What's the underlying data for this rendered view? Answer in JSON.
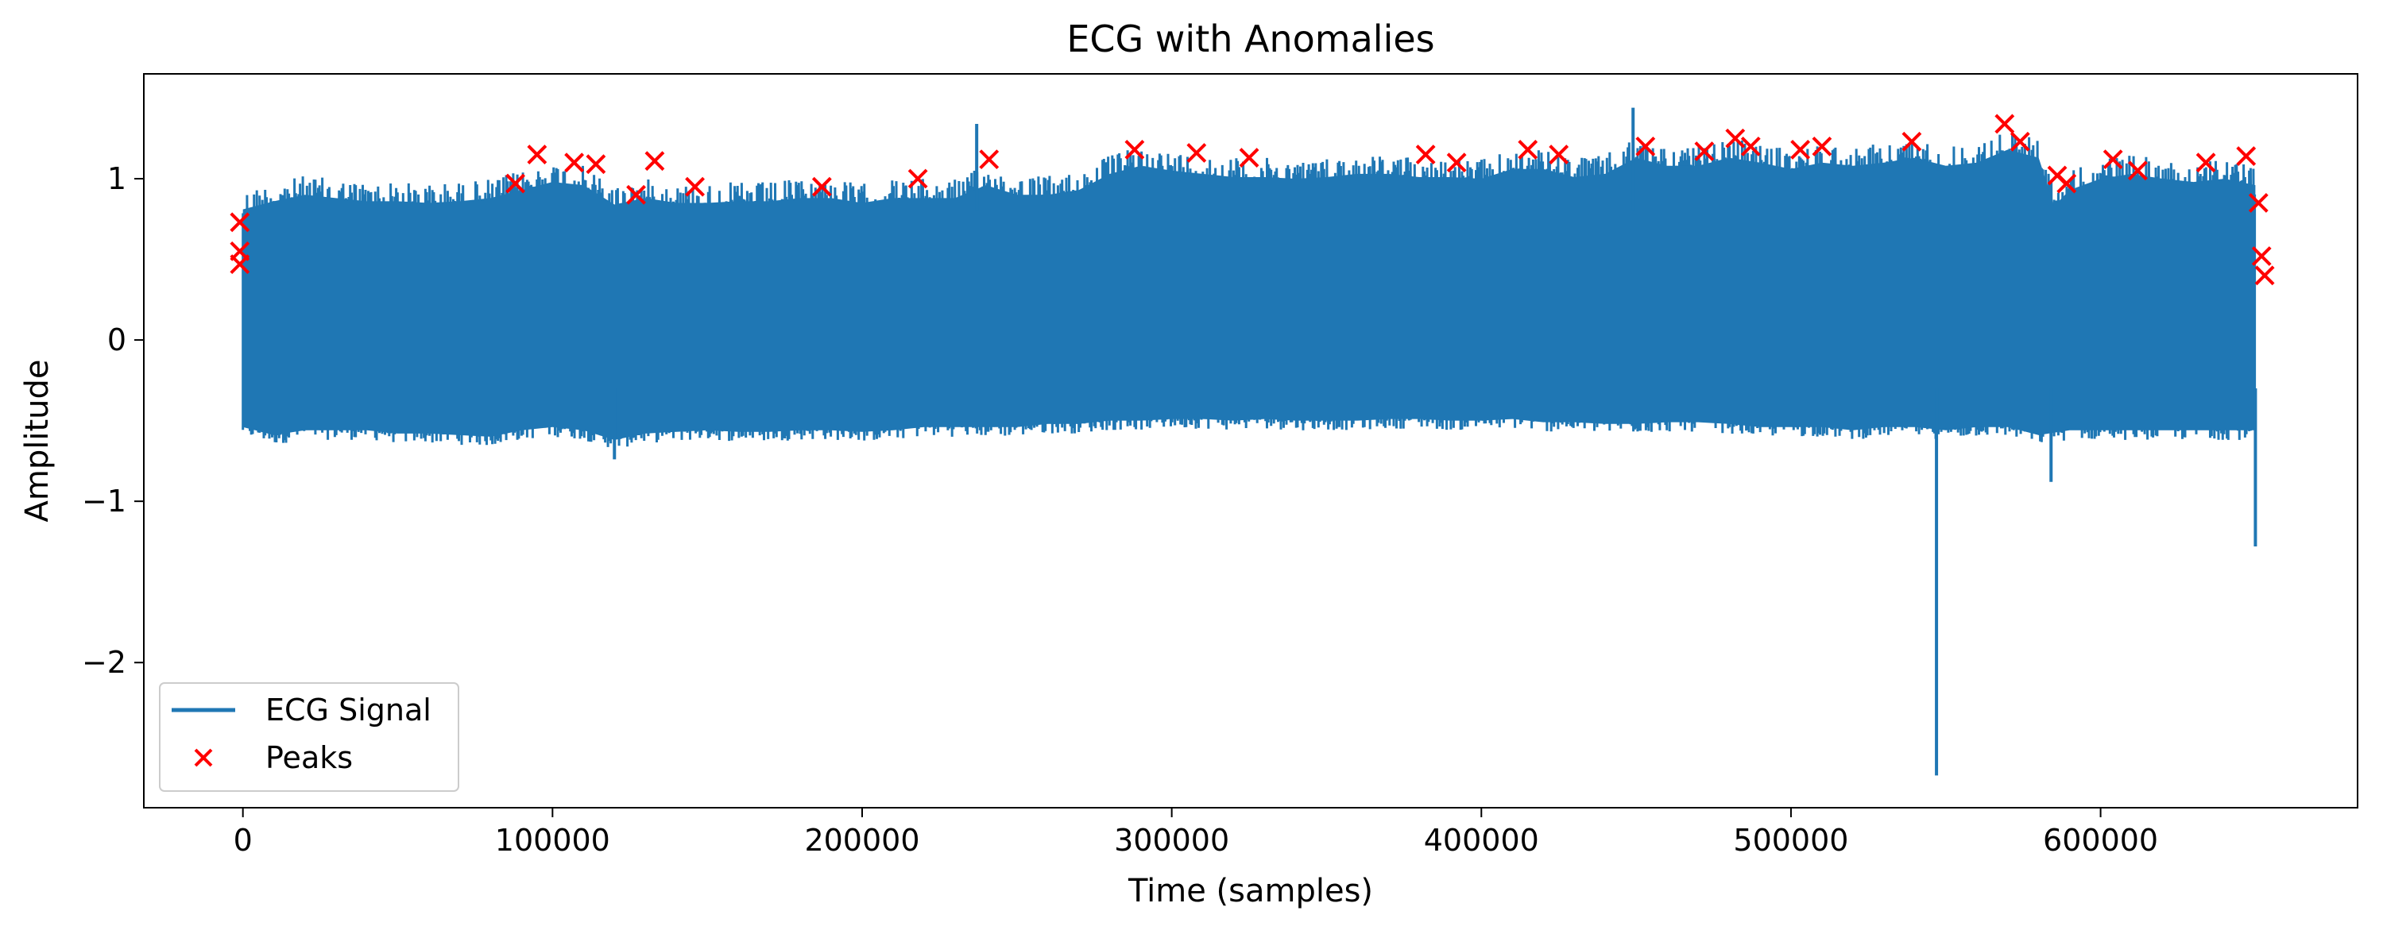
{
  "chart_data": {
    "type": "line",
    "title": "ECG with Anomalies",
    "xlabel": "Time (samples)",
    "ylabel": "Amplitude",
    "xlim": [
      -32000,
      683000
    ],
    "ylim": [
      -2.9,
      1.65
    ],
    "xticks": [
      0,
      100000,
      200000,
      300000,
      400000,
      500000,
      600000
    ],
    "xtick_labels": [
      "0",
      "100000",
      "200000",
      "300000",
      "400000",
      "500000",
      "600000"
    ],
    "yticks": [
      1,
      0,
      -1,
      -2
    ],
    "ytick_labels": [
      "1",
      "0",
      "−1",
      "−2"
    ],
    "grid": false,
    "legend": {
      "placement": "lower-left",
      "entries": [
        "ECG Signal",
        "Peaks"
      ]
    },
    "colors": {
      "signal": "#1f77b4",
      "peaks": "#ff0000"
    },
    "series": [
      {
        "name": "ECG Signal",
        "kind": "line",
        "x_range": [
          0,
          650000
        ],
        "upper_envelope": [
          [
            0,
            0.93
          ],
          [
            10000,
            0.98
          ],
          [
            20000,
            1.02
          ],
          [
            30000,
            1.0
          ],
          [
            40000,
            0.98
          ],
          [
            50000,
            0.98
          ],
          [
            60000,
            0.97
          ],
          [
            70000,
            0.98
          ],
          [
            80000,
            1.0
          ],
          [
            90000,
            1.05
          ],
          [
            100000,
            1.1
          ],
          [
            110000,
            1.08
          ],
          [
            120000,
            0.96
          ],
          [
            130000,
            1.0
          ],
          [
            140000,
            0.97
          ],
          [
            150000,
            0.97
          ],
          [
            160000,
            0.98
          ],
          [
            170000,
            0.98
          ],
          [
            180000,
            1.0
          ],
          [
            190000,
            1.0
          ],
          [
            200000,
            0.97
          ],
          [
            210000,
            1.0
          ],
          [
            220000,
            1.0
          ],
          [
            230000,
            1.0
          ],
          [
            240000,
            1.08
          ],
          [
            250000,
            1.02
          ],
          [
            260000,
            1.02
          ],
          [
            270000,
            1.05
          ],
          [
            280000,
            1.15
          ],
          [
            290000,
            1.2
          ],
          [
            300000,
            1.17
          ],
          [
            310000,
            1.15
          ],
          [
            320000,
            1.13
          ],
          [
            330000,
            1.13
          ],
          [
            340000,
            1.12
          ],
          [
            350000,
            1.13
          ],
          [
            360000,
            1.15
          ],
          [
            370000,
            1.15
          ],
          [
            380000,
            1.13
          ],
          [
            390000,
            1.13
          ],
          [
            400000,
            1.12
          ],
          [
            410000,
            1.18
          ],
          [
            420000,
            1.18
          ],
          [
            430000,
            1.13
          ],
          [
            440000,
            1.15
          ],
          [
            450000,
            1.25
          ],
          [
            460000,
            1.2
          ],
          [
            470000,
            1.2
          ],
          [
            480000,
            1.25
          ],
          [
            490000,
            1.22
          ],
          [
            500000,
            1.18
          ],
          [
            510000,
            1.22
          ],
          [
            520000,
            1.2
          ],
          [
            530000,
            1.22
          ],
          [
            540000,
            1.25
          ],
          [
            550000,
            1.2
          ],
          [
            560000,
            1.22
          ],
          [
            570000,
            1.3
          ],
          [
            580000,
            1.25
          ],
          [
            585000,
            0.95
          ],
          [
            590000,
            1.05
          ],
          [
            600000,
            1.12
          ],
          [
            610000,
            1.15
          ],
          [
            620000,
            1.12
          ],
          [
            630000,
            1.1
          ],
          [
            640000,
            1.12
          ],
          [
            650000,
            1.08
          ]
        ],
        "lower_envelope": [
          [
            0,
            -0.6
          ],
          [
            10000,
            -0.65
          ],
          [
            20000,
            -0.62
          ],
          [
            30000,
            -0.62
          ],
          [
            40000,
            -0.62
          ],
          [
            50000,
            -0.64
          ],
          [
            60000,
            -0.64
          ],
          [
            70000,
            -0.65
          ],
          [
            80000,
            -0.66
          ],
          [
            90000,
            -0.62
          ],
          [
            100000,
            -0.6
          ],
          [
            110000,
            -0.62
          ],
          [
            120000,
            -0.68
          ],
          [
            130000,
            -0.64
          ],
          [
            140000,
            -0.63
          ],
          [
            150000,
            -0.62
          ],
          [
            160000,
            -0.63
          ],
          [
            170000,
            -0.63
          ],
          [
            180000,
            -0.62
          ],
          [
            190000,
            -0.62
          ],
          [
            200000,
            -0.63
          ],
          [
            210000,
            -0.62
          ],
          [
            220000,
            -0.6
          ],
          [
            230000,
            -0.6
          ],
          [
            240000,
            -0.6
          ],
          [
            250000,
            -0.6
          ],
          [
            260000,
            -0.58
          ],
          [
            270000,
            -0.58
          ],
          [
            280000,
            -0.56
          ],
          [
            290000,
            -0.56
          ],
          [
            300000,
            -0.55
          ],
          [
            310000,
            -0.55
          ],
          [
            320000,
            -0.56
          ],
          [
            330000,
            -0.55
          ],
          [
            340000,
            -0.56
          ],
          [
            350000,
            -0.56
          ],
          [
            360000,
            -0.56
          ],
          [
            370000,
            -0.55
          ],
          [
            380000,
            -0.55
          ],
          [
            390000,
            -0.56
          ],
          [
            400000,
            -0.56
          ],
          [
            410000,
            -0.55
          ],
          [
            420000,
            -0.57
          ],
          [
            430000,
            -0.57
          ],
          [
            440000,
            -0.58
          ],
          [
            450000,
            -0.58
          ],
          [
            460000,
            -0.57
          ],
          [
            470000,
            -0.57
          ],
          [
            480000,
            -0.58
          ],
          [
            490000,
            -0.6
          ],
          [
            500000,
            -0.6
          ],
          [
            510000,
            -0.6
          ],
          [
            520000,
            -0.62
          ],
          [
            530000,
            -0.6
          ],
          [
            540000,
            -0.6
          ],
          [
            550000,
            -0.62
          ],
          [
            560000,
            -0.6
          ],
          [
            570000,
            -0.6
          ],
          [
            580000,
            -0.65
          ],
          [
            590000,
            -0.62
          ],
          [
            600000,
            -0.62
          ],
          [
            610000,
            -0.62
          ],
          [
            620000,
            -0.62
          ],
          [
            630000,
            -0.62
          ],
          [
            640000,
            -0.62
          ],
          [
            650000,
            -0.62
          ]
        ],
        "spikes": [
          {
            "x": 120000,
            "y": -0.74
          },
          {
            "x": 237000,
            "y": 1.34
          },
          {
            "x": 449000,
            "y": 1.44
          },
          {
            "x": 547000,
            "y": -2.7
          },
          {
            "x": 584000,
            "y": -0.88
          },
          {
            "x": 650000,
            "y": -1.28
          }
        ]
      },
      {
        "name": "Peaks",
        "kind": "scatter",
        "marker": "x",
        "points": [
          {
            "x": -1000,
            "y": 0.73
          },
          {
            "x": -1000,
            "y": 0.55
          },
          {
            "x": -1000,
            "y": 0.47
          },
          {
            "x": 88000,
            "y": 0.97
          },
          {
            "x": 95000,
            "y": 1.15
          },
          {
            "x": 107000,
            "y": 1.1
          },
          {
            "x": 114000,
            "y": 1.09
          },
          {
            "x": 127000,
            "y": 0.9
          },
          {
            "x": 133000,
            "y": 1.11
          },
          {
            "x": 146000,
            "y": 0.95
          },
          {
            "x": 187000,
            "y": 0.95
          },
          {
            "x": 218000,
            "y": 1.0
          },
          {
            "x": 241000,
            "y": 1.12
          },
          {
            "x": 288000,
            "y": 1.18
          },
          {
            "x": 308000,
            "y": 1.16
          },
          {
            "x": 325000,
            "y": 1.13
          },
          {
            "x": 382000,
            "y": 1.15
          },
          {
            "x": 392000,
            "y": 1.1
          },
          {
            "x": 415000,
            "y": 1.18
          },
          {
            "x": 425000,
            "y": 1.15
          },
          {
            "x": 453000,
            "y": 1.2
          },
          {
            "x": 472000,
            "y": 1.17
          },
          {
            "x": 482000,
            "y": 1.25
          },
          {
            "x": 487000,
            "y": 1.2
          },
          {
            "x": 503000,
            "y": 1.18
          },
          {
            "x": 510000,
            "y": 1.2
          },
          {
            "x": 539000,
            "y": 1.23
          },
          {
            "x": 569000,
            "y": 1.34
          },
          {
            "x": 574000,
            "y": 1.23
          },
          {
            "x": 586000,
            "y": 1.02
          },
          {
            "x": 589000,
            "y": 0.97
          },
          {
            "x": 604000,
            "y": 1.12
          },
          {
            "x": 612000,
            "y": 1.05
          },
          {
            "x": 634000,
            "y": 1.1
          },
          {
            "x": 647000,
            "y": 1.14
          },
          {
            "x": 651000,
            "y": 0.85
          },
          {
            "x": 652000,
            "y": 0.52
          },
          {
            "x": 653000,
            "y": 0.4
          }
        ]
      }
    ]
  }
}
